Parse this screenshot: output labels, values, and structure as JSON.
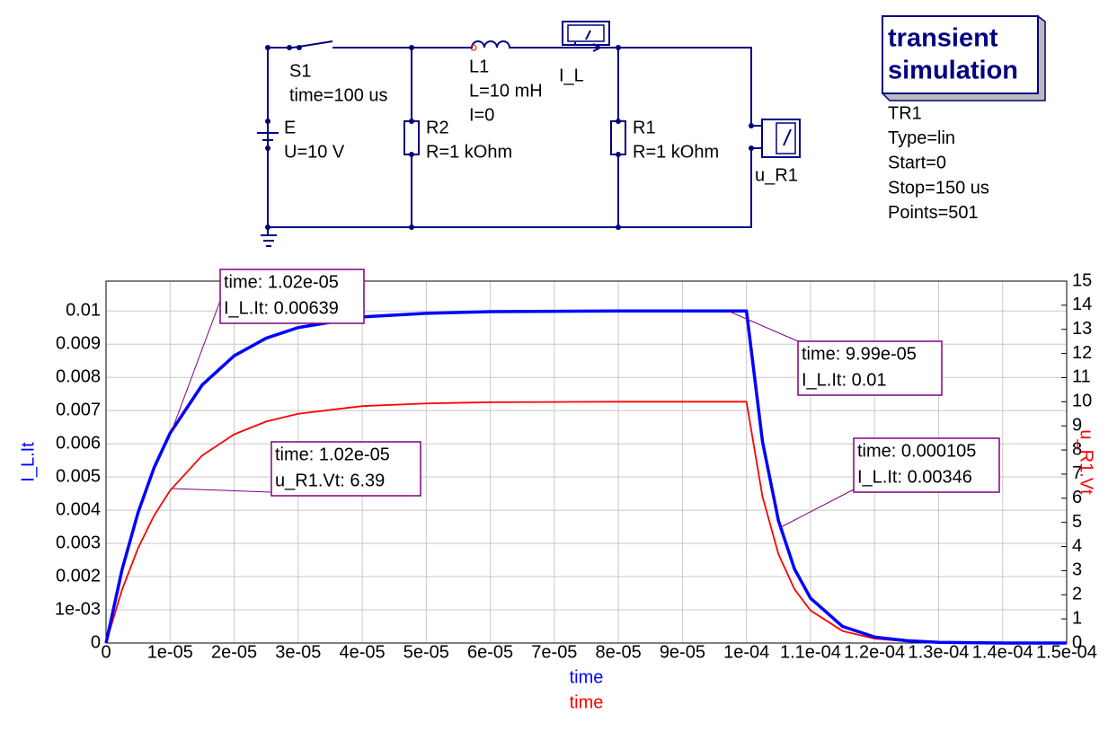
{
  "schematic": {
    "components": [
      {
        "lines": [
          "S1",
          "time=100 us"
        ]
      },
      {
        "lines": [
          "E",
          "U=10 V"
        ]
      },
      {
        "lines": [
          "R2",
          "R=1 kOhm"
        ]
      },
      {
        "lines": [
          "L1",
          "L=10 mH",
          "I=0"
        ]
      },
      {
        "lines": [
          "I_L"
        ]
      },
      {
        "lines": [
          "R1",
          "R=1 kOhm"
        ]
      },
      {
        "lines": [
          "u_R1"
        ]
      }
    ],
    "simulation": {
      "title": [
        "transient",
        "simulation"
      ],
      "lines": [
        "TR1",
        "Type=lin",
        "Start=0",
        "Stop=150 us",
        "Points=501"
      ]
    }
  },
  "chart_data": {
    "type": "line",
    "x": [
      0,
      2.5e-06,
      5e-06,
      7.5e-06,
      1e-05,
      1.5e-05,
      2e-05,
      2.5e-05,
      3e-05,
      4e-05,
      5e-05,
      6e-05,
      7e-05,
      8e-05,
      9e-05,
      0.0001,
      0.0001025,
      0.000105,
      0.0001075,
      0.00011,
      0.000115,
      0.00012,
      0.000125,
      0.00013,
      0.00014,
      0.00015
    ],
    "series": [
      {
        "name": "I_L.It",
        "color": "#0000ff",
        "values": [
          0,
          0.00221,
          0.00393,
          0.00528,
          0.00632,
          0.00777,
          0.00865,
          0.00918,
          0.0095,
          0.00982,
          0.00993,
          0.00998,
          0.00999,
          0.01,
          0.01,
          0.01,
          0.00607,
          0.00368,
          0.00223,
          0.00135,
          0.0005,
          0.00018,
          7e-05,
          2e-05,
          0,
          0
        ]
      },
      {
        "name": "u_R1.Vt",
        "color": "#ff0000",
        "axis": "y2",
        "values": [
          0,
          2.21,
          3.93,
          5.28,
          6.32,
          7.77,
          8.65,
          9.18,
          9.5,
          9.82,
          9.93,
          9.98,
          9.99,
          10,
          10,
          10,
          6.07,
          3.68,
          2.23,
          1.35,
          0.5,
          0.18,
          0.07,
          0.02,
          0,
          0
        ]
      }
    ],
    "xlabels": [
      "time",
      "time"
    ],
    "ylabel": "I_L.It",
    "y2label": "u_R1.Vt",
    "xlim": [
      0,
      0.00015
    ],
    "xticks": [
      0,
      {
        "value": 1e-05,
        "label": "1e-05"
      },
      {
        "value": 2e-05,
        "label": "2e-05"
      },
      {
        "value": 3e-05,
        "label": "3e-05"
      },
      {
        "value": 4e-05,
        "label": "4e-05"
      },
      {
        "value": 5e-05,
        "label": "5e-05"
      },
      {
        "value": 6e-05,
        "label": "6e-05"
      },
      {
        "value": 7e-05,
        "label": "7e-05"
      },
      {
        "value": 8e-05,
        "label": "8e-05"
      },
      {
        "value": 9e-05,
        "label": "9e-05"
      },
      {
        "value": 0.0001,
        "label": "1e-04"
      },
      {
        "value": 0.00011,
        "label": "1.1e-04"
      },
      {
        "value": 0.00012,
        "label": "1.2e-04"
      },
      {
        "value": 0.00013,
        "label": "1.3e-04"
      },
      {
        "value": 0.00014,
        "label": "1.4e-04"
      },
      {
        "value": 0.00015,
        "label": "1.5e-04"
      }
    ],
    "ylim": [
      0,
      0.0109
    ],
    "yticks": [
      0,
      {
        "value": 0.001,
        "label": "1e-03"
      },
      0.002,
      0.003,
      0.004,
      0.005,
      0.006,
      0.007,
      0.008,
      0.009,
      0.01
    ],
    "y2lim": [
      0,
      15
    ],
    "y2ticks": [
      0,
      1,
      2,
      3,
      4,
      5,
      6,
      7,
      8,
      9,
      10,
      11,
      12,
      13,
      14,
      15
    ],
    "grid": true,
    "markers": [
      {
        "lines": [
          "time: 1.02e-05",
          "I_L.It: 0.00639"
        ]
      },
      {
        "lines": [
          "time: 1.02e-05",
          "u_R1.Vt: 6.39"
        ]
      },
      {
        "lines": [
          "time: 9.99e-05",
          "I_L.It: 0.01"
        ]
      },
      {
        "lines": [
          "time: 0.000105",
          "I_L.It: 0.00346"
        ]
      }
    ]
  }
}
